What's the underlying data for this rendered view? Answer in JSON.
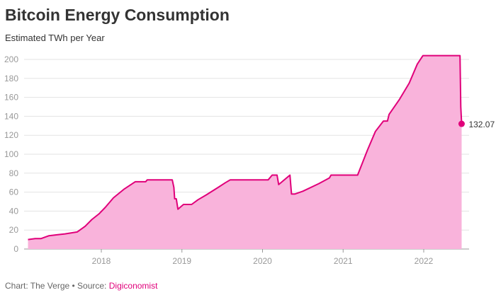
{
  "chart_data": {
    "type": "area",
    "title": "Bitcoin Energy Consumption",
    "subtitle": "Estimated TWh per Year",
    "ylim": [
      0,
      200
    ],
    "yticks": [
      0,
      20,
      40,
      60,
      80,
      100,
      120,
      140,
      160,
      180,
      200
    ],
    "xticks": [
      "2018",
      "2019",
      "2020",
      "2021",
      "2022"
    ],
    "xlim": [
      2017.09,
      2022.5
    ],
    "grid": true,
    "colors": {
      "line": "#e0007a",
      "fill": "#f9b3db"
    },
    "series": [
      {
        "x": [
          2017.09,
          2017.18,
          2017.25,
          2017.35,
          2017.45,
          2017.55,
          2017.7,
          2017.8,
          2017.88,
          2017.97,
          2018.05,
          2018.15,
          2018.28,
          2018.42,
          2018.55,
          2018.57,
          2018.88,
          2018.9,
          2018.91,
          2018.93,
          2018.95,
          2019.02,
          2019.05,
          2019.12,
          2019.2,
          2019.3,
          2019.45,
          2019.54,
          2019.6,
          2020.07,
          2020.12,
          2020.18,
          2020.2,
          2020.34,
          2020.36,
          2020.4,
          2020.5,
          2020.7,
          2020.83,
          2020.85,
          2021.18,
          2021.3,
          2021.4,
          2021.5,
          2021.55,
          2021.57,
          2021.7,
          2021.82,
          2021.92,
          2021.99,
          2022.45,
          2022.46,
          2022.47
        ],
        "y": [
          10,
          11,
          11,
          14,
          15,
          16,
          18,
          24,
          31,
          37,
          44,
          54,
          63,
          71,
          71,
          73,
          73,
          65,
          53,
          53,
          42,
          47,
          47,
          47,
          52,
          57,
          65,
          70,
          73,
          73,
          78,
          78,
          68,
          78,
          58,
          58,
          61,
          69,
          75,
          78,
          78,
          104,
          124,
          135,
          135,
          142,
          158,
          175,
          195,
          204,
          204,
          150,
          132.07
        ]
      }
    ],
    "annotations": [
      {
        "label": "132.07"
      }
    ]
  },
  "header": {
    "title": "Bitcoin Energy Consumption",
    "subtitle": "Estimated TWh per Year"
  },
  "footer": {
    "prefix": "Chart: The Verge • Source: ",
    "source": "Digiconomist"
  }
}
